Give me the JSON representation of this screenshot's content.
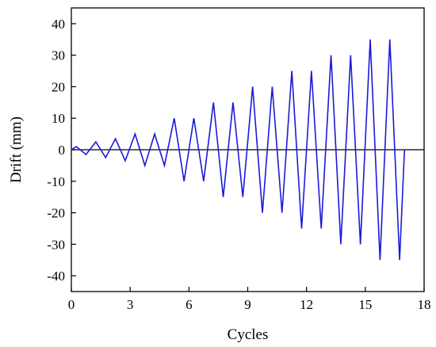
{
  "chart_data": {
    "type": "line",
    "title": "",
    "xlabel": "Cycles",
    "ylabel": "Drift (mm)",
    "xlim": [
      0,
      18
    ],
    "ylim": [
      -45,
      45
    ],
    "x_ticks": [
      0,
      3,
      6,
      9,
      12,
      15,
      18
    ],
    "y_ticks": [
      -40,
      -30,
      -20,
      -10,
      0,
      10,
      20,
      30,
      40
    ],
    "grid": false,
    "legend": "none",
    "zero_line": true,
    "series": [
      {
        "color": "#1a1adb",
        "x": [
          0,
          0.25,
          0.75,
          1.25,
          1.75,
          2.25,
          2.75,
          3.25,
          3.75,
          4.25,
          4.75,
          5.25,
          5.75,
          6.25,
          6.75,
          7.25,
          7.75,
          8.25,
          8.75,
          9.25,
          9.75,
          10.25,
          10.75,
          11.25,
          11.75,
          12.25,
          12.75,
          13.25,
          13.75,
          14.25,
          14.75,
          15.25,
          15.75,
          16.25,
          16.75,
          17.0
        ],
        "y": [
          0,
          1,
          -1.5,
          2.5,
          -2.5,
          3.5,
          -3.5,
          5,
          -5,
          5,
          -5,
          10,
          -10,
          10,
          -10,
          15,
          -15,
          15,
          -15,
          20,
          -20,
          20,
          -20,
          25,
          -25,
          25,
          -25,
          30,
          -30,
          30,
          -30,
          35,
          -35,
          35,
          -35,
          0
        ]
      }
    ]
  }
}
